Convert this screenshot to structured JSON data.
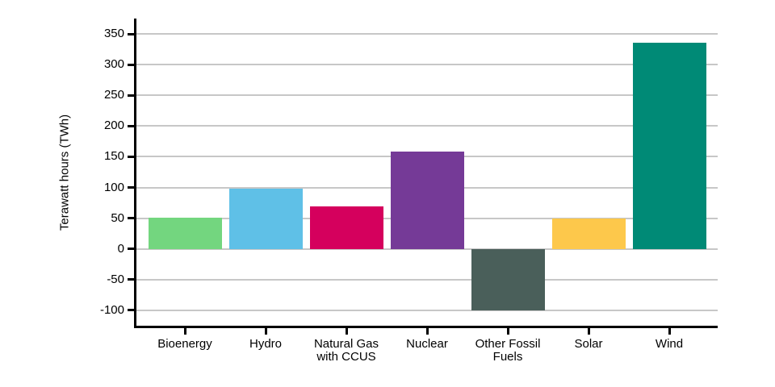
{
  "chart_data": {
    "type": "bar",
    "title": "",
    "xlabel": "",
    "ylabel": "Terawatt hours (TWh)",
    "categories": [
      "Bioenergy",
      "Hydro",
      "Natural Gas\nwith CCUS",
      "Nuclear",
      "Other Fossil\nFuels",
      "Solar",
      "Wind"
    ],
    "values": [
      51,
      98,
      69,
      159,
      -100,
      49,
      335
    ],
    "bar_colors": [
      "#73d67f",
      "#5fc0e7",
      "#d5005d",
      "#753a97",
      "#4a5f5a",
      "#fdc84b",
      "#008a76"
    ],
    "ylim": [
      -125,
      375
    ],
    "yticks": [
      -100,
      -50,
      0,
      50,
      100,
      150,
      200,
      250,
      300,
      350
    ],
    "grid": "horizontal-only",
    "legend": "none"
  },
  "colors": {
    "background": "#ffffff",
    "gridline": "#c7c7c7",
    "axis": "#000000",
    "text": "#000000"
  }
}
